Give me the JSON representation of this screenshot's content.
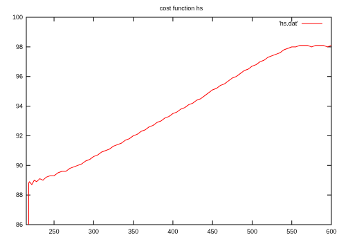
{
  "chart_data": {
    "type": "line",
    "title": "cost function hs",
    "xlabel": "",
    "ylabel": "",
    "xlim": [
      215,
      600
    ],
    "ylim": [
      86,
      100
    ],
    "xticks": [
      250,
      300,
      350,
      400,
      450,
      500,
      550,
      600
    ],
    "yticks": [
      86,
      88,
      90,
      92,
      94,
      96,
      98,
      100
    ],
    "grid": false,
    "legend_position": "top-right",
    "series": [
      {
        "name": "'hs.dat'",
        "color": "#ff0000",
        "x": [
          218,
          218,
          219,
          222,
          225,
          228,
          232,
          236,
          240,
          245,
          250,
          255,
          260,
          265,
          270,
          275,
          280,
          285,
          290,
          295,
          300,
          305,
          310,
          315,
          320,
          325,
          330,
          335,
          340,
          345,
          350,
          355,
          360,
          365,
          370,
          375,
          380,
          385,
          390,
          395,
          400,
          405,
          410,
          415,
          420,
          425,
          430,
          435,
          440,
          445,
          450,
          455,
          460,
          465,
          470,
          475,
          480,
          485,
          490,
          495,
          500,
          505,
          510,
          515,
          520,
          525,
          530,
          535,
          540,
          545,
          550,
          555,
          560,
          565,
          570,
          575,
          580,
          585,
          590,
          595,
          600
        ],
        "y": [
          86.0,
          88.8,
          88.9,
          88.7,
          89.0,
          88.9,
          89.1,
          89.0,
          89.2,
          89.3,
          89.3,
          89.5,
          89.6,
          89.6,
          89.8,
          89.9,
          90.0,
          90.1,
          90.3,
          90.4,
          90.6,
          90.7,
          90.9,
          91.0,
          91.1,
          91.3,
          91.4,
          91.5,
          91.7,
          91.8,
          92.0,
          92.1,
          92.3,
          92.4,
          92.6,
          92.7,
          92.9,
          93.0,
          93.2,
          93.3,
          93.5,
          93.6,
          93.8,
          93.9,
          94.1,
          94.2,
          94.4,
          94.5,
          94.7,
          94.9,
          95.1,
          95.2,
          95.4,
          95.5,
          95.7,
          95.9,
          96.0,
          96.2,
          96.4,
          96.5,
          96.7,
          96.8,
          97.0,
          97.1,
          97.3,
          97.4,
          97.5,
          97.6,
          97.8,
          97.9,
          98.0,
          98.0,
          98.1,
          98.1,
          98.1,
          98.0,
          98.1,
          98.1,
          98.1,
          98.0,
          98.1
        ]
      }
    ]
  }
}
